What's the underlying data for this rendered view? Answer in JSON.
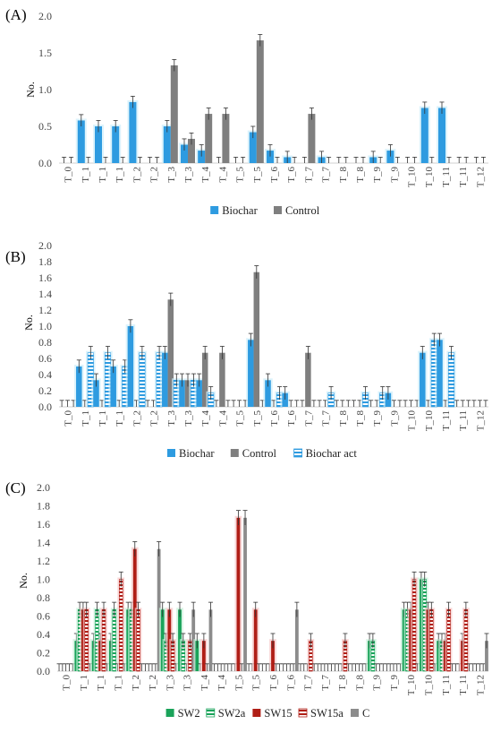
{
  "chart_data": [
    {
      "type": "bar",
      "panel_label": "(A)",
      "ylabel": "No.",
      "ylim": [
        0,
        2.0
      ],
      "yticks": [
        0.0,
        0.5,
        1.0,
        1.5,
        2.0
      ],
      "categories": [
        "T_0",
        "T_1",
        "T_1",
        "T_1",
        "T_2",
        "T_2",
        "T_3",
        "T_3",
        "T_4",
        "T_4",
        "T_5",
        "T_5",
        "T_6",
        "T_6",
        "T_7",
        "T_7",
        "T_8",
        "T_8",
        "T_9",
        "T_9",
        "T_10",
        "T_10",
        "T_11",
        "T_11",
        "T_12"
      ],
      "series": [
        {
          "name": "Biochar",
          "values": [
            0,
            0.58,
            0.5,
            0.5,
            0.83,
            0,
            0.5,
            0.25,
            0.17,
            0,
            0,
            0.42,
            0.17,
            0.08,
            0,
            0.08,
            0,
            0,
            0.08,
            0.17,
            0,
            0.75,
            0.75,
            0,
            0
          ]
        },
        {
          "name": "Control",
          "values": [
            0,
            0,
            0,
            0,
            0,
            0,
            1.33,
            0.33,
            0.67,
            0.67,
            0,
            1.67,
            0,
            0,
            0.67,
            0,
            0,
            0,
            0,
            0,
            0,
            0,
            0,
            0,
            0
          ]
        }
      ],
      "legend_position": "bottom"
    },
    {
      "type": "bar",
      "panel_label": "(B)",
      "ylabel": "No.",
      "ylim": [
        0,
        2.0
      ],
      "yticks": [
        0.0,
        0.2,
        0.4,
        0.6,
        0.8,
        1.0,
        1.2,
        1.4,
        1.6,
        1.8,
        2.0
      ],
      "categories": [
        "T_0",
        "T_1",
        "T_1",
        "T_1",
        "T_2",
        "T_2",
        "T_3",
        "T_3",
        "T_4",
        "T_4",
        "T_5",
        "T_5",
        "T_6",
        "T_6",
        "T_7",
        "T_7",
        "T_8",
        "T_8",
        "T_9",
        "T_9",
        "T_10",
        "T_10",
        "T_11",
        "T_11",
        "T_12"
      ],
      "series": [
        {
          "name": "Biochar",
          "values": [
            0,
            0.5,
            0.33,
            0.5,
            1.0,
            0,
            0.67,
            0.33,
            0.33,
            0,
            0,
            0.83,
            0.33,
            0.17,
            0,
            0,
            0,
            0,
            0,
            0.17,
            0,
            0.67,
            0.83,
            0,
            0
          ]
        },
        {
          "name": "Control",
          "values": [
            0,
            0,
            0,
            0,
            0,
            0,
            1.33,
            0.33,
            0.67,
            0.67,
            0,
            1.67,
            0,
            0,
            0.67,
            0,
            0,
            0,
            0,
            0,
            0,
            0,
            0,
            0,
            0
          ]
        },
        {
          "name": "Biochar act",
          "values": [
            0,
            0.67,
            0.67,
            0.5,
            0.67,
            0.67,
            0.33,
            0.33,
            0.17,
            0,
            0,
            0,
            0.17,
            0,
            0,
            0.17,
            0,
            0.17,
            0.17,
            0,
            0,
            0.83,
            0.67,
            0,
            0
          ]
        }
      ],
      "legend_position": "bottom"
    },
    {
      "type": "bar",
      "panel_label": "(C)",
      "ylabel": "No.",
      "ylim": [
        0,
        2.0
      ],
      "yticks": [
        0.0,
        0.2,
        0.4,
        0.6,
        0.8,
        1.0,
        1.2,
        1.4,
        1.6,
        1.8,
        2.0
      ],
      "categories": [
        "T_0",
        "T_1",
        "T_1",
        "T_1",
        "T_2",
        "T_2",
        "T_3",
        "T_3",
        "T_4",
        "T_4",
        "T_5",
        "T_5",
        "T_6",
        "T_6",
        "T_7",
        "T_7",
        "T_8",
        "T_8",
        "T_9",
        "T_9",
        "T_10",
        "T_10",
        "T_11",
        "T_11",
        "T_12"
      ],
      "series": [
        {
          "name": "SW2",
          "values": [
            0,
            0.33,
            0.33,
            0.33,
            0.67,
            0,
            0.67,
            0.67,
            0.33,
            0,
            0,
            0,
            0,
            0,
            0,
            0,
            0,
            0,
            0.33,
            0,
            0.67,
            1.0,
            0.33,
            0,
            0
          ]
        },
        {
          "name": "SW2a",
          "values": [
            0,
            0.67,
            0.67,
            0.67,
            0.67,
            0,
            0.33,
            0.33,
            0,
            0,
            0,
            0,
            0,
            0,
            0,
            0,
            0,
            0,
            0.33,
            0,
            0.67,
            1.0,
            0.33,
            0,
            0
          ]
        },
        {
          "name": "SW15",
          "values": [
            0,
            0.67,
            0.33,
            0,
            1.33,
            0,
            0.67,
            0,
            0.33,
            0,
            1.67,
            0.67,
            0.33,
            0,
            0,
            0,
            0,
            0,
            0,
            0,
            0.67,
            0.67,
            0.33,
            0.33,
            0
          ]
        },
        {
          "name": "SW15a",
          "values": [
            0,
            0.67,
            0.67,
            1.0,
            0.67,
            0,
            0.33,
            0.33,
            0,
            0,
            0,
            0,
            0,
            0,
            0.33,
            0,
            0.33,
            0,
            0,
            0,
            1.0,
            0.67,
            0.67,
            0.67,
            0
          ]
        },
        {
          "name": "C",
          "values": [
            0,
            0,
            0,
            0,
            0,
            1.33,
            0,
            0.67,
            0.67,
            0,
            1.67,
            0,
            0,
            0.67,
            0,
            0,
            0,
            0,
            0,
            0,
            0,
            0,
            0,
            0,
            0.33
          ]
        }
      ],
      "legend_position": "bottom"
    }
  ],
  "colors": {
    "biochar": "#2e9be0",
    "control": "#7f7f7f",
    "biochar_act": "#2e9be0",
    "sw2": "#1aa35a",
    "sw2a": "#1aa35a",
    "sw15": "#b01e16",
    "sw15a": "#b01e16",
    "c": "#8c8c8c",
    "bar_glow_blue": "#cdeefb",
    "bar_glow_red": "#f6c8c8",
    "bar_glow_green": "#c8f0d8"
  }
}
